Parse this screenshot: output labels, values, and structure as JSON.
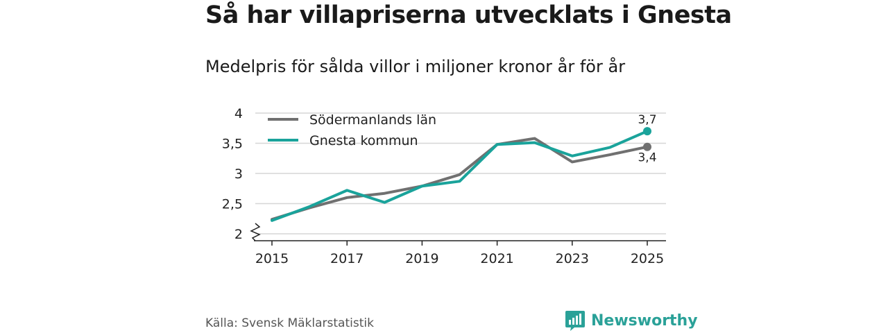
{
  "title": "Så har villapriserna utvecklats i Gnesta",
  "subtitle": "Medelpris för sålda villor i miljoner kronor år för år",
  "source": "Källa: Svensk Mäklarstatistik",
  "brand": {
    "name": "Newsworthy",
    "icon": "newsworthy-logo-icon",
    "color": "#2aa198"
  },
  "chart_data": {
    "type": "line",
    "x": [
      2015,
      2016,
      2017,
      2018,
      2019,
      2020,
      2021,
      2022,
      2023,
      2024,
      2025
    ],
    "series": [
      {
        "name": "Södermanlands län",
        "color": "#707070",
        "values": [
          2.24,
          2.43,
          2.6,
          2.67,
          2.79,
          2.98,
          3.48,
          3.58,
          3.19,
          3.31,
          3.44
        ],
        "end_label": "3,4"
      },
      {
        "name": "Gnesta kommun",
        "color": "#1aa39b",
        "values": [
          2.22,
          2.45,
          2.72,
          2.52,
          2.79,
          2.87,
          3.48,
          3.51,
          3.29,
          3.43,
          3.7
        ],
        "end_label": "3,7"
      }
    ],
    "ylim": [
      2,
      4
    ],
    "yticks": [
      2,
      2.5,
      3,
      3.5,
      4
    ],
    "ytick_labels": [
      "2",
      "2,5",
      "3",
      "3,5",
      "4"
    ],
    "xticks": [
      2015,
      2017,
      2019,
      2021,
      2023,
      2025
    ],
    "xtick_labels": [
      "2015",
      "2017",
      "2019",
      "2021",
      "2023",
      "2025"
    ],
    "grid": true,
    "legend": "top-left",
    "axis_break": true
  }
}
